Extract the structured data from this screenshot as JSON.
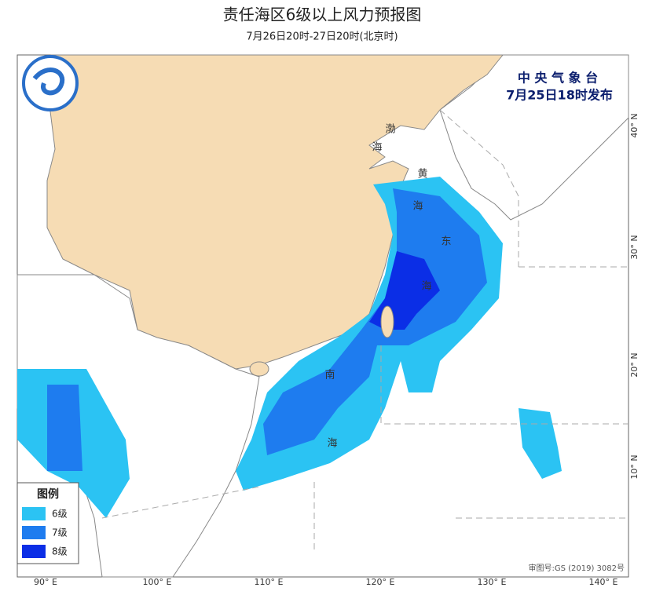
{
  "header": {
    "title": "责任海区6级以上风力预报图",
    "subtitle": "7月26日20时-27日20时(北京时)"
  },
  "issuer": {
    "agency": "中 央 气 象 台",
    "issued": "7月25日18时发布"
  },
  "legend": {
    "title": "图例",
    "items": [
      {
        "label": "6级",
        "color": "#2bc3f3"
      },
      {
        "label": "7级",
        "color": "#1e7cef"
      },
      {
        "label": "8级",
        "color": "#0b2ee6"
      }
    ]
  },
  "sea_labels": [
    "渤",
    "海",
    "黄",
    "海",
    "东",
    "海",
    "南",
    "海"
  ],
  "axes": {
    "longitude": [
      "90° E",
      "100° E",
      "110° E",
      "120° E",
      "130° E",
      "140° E"
    ],
    "latitude": [
      "40° N",
      "30° N",
      "20° N",
      "10° N"
    ]
  },
  "footer": {
    "map_number": "审图号:GS (2019) 3082号"
  }
}
